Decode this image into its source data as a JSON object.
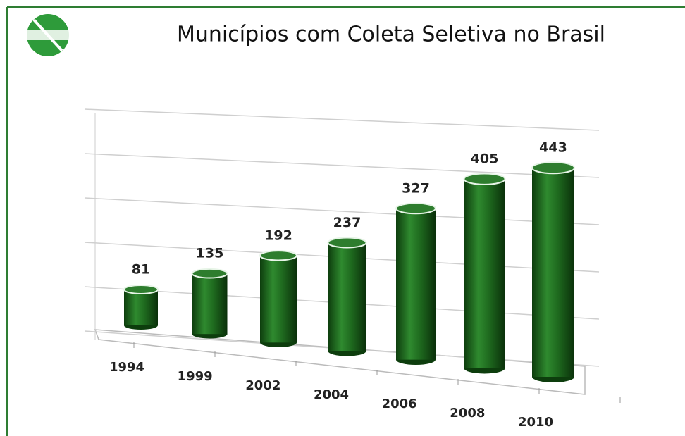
{
  "chart_data": {
    "type": "bar3d",
    "title": "Municípios com Coleta Seletiva no Brasil",
    "categories": [
      "1994",
      "1999",
      "2002",
      "2004",
      "2006",
      "2008",
      "2010"
    ],
    "values": [
      81,
      135,
      192,
      237,
      327,
      405,
      443
    ],
    "color": "#1f6b1f",
    "ylim": [
      0,
      500
    ],
    "yticks": [
      0,
      100,
      200,
      300,
      400,
      500
    ],
    "grid": true
  }
}
